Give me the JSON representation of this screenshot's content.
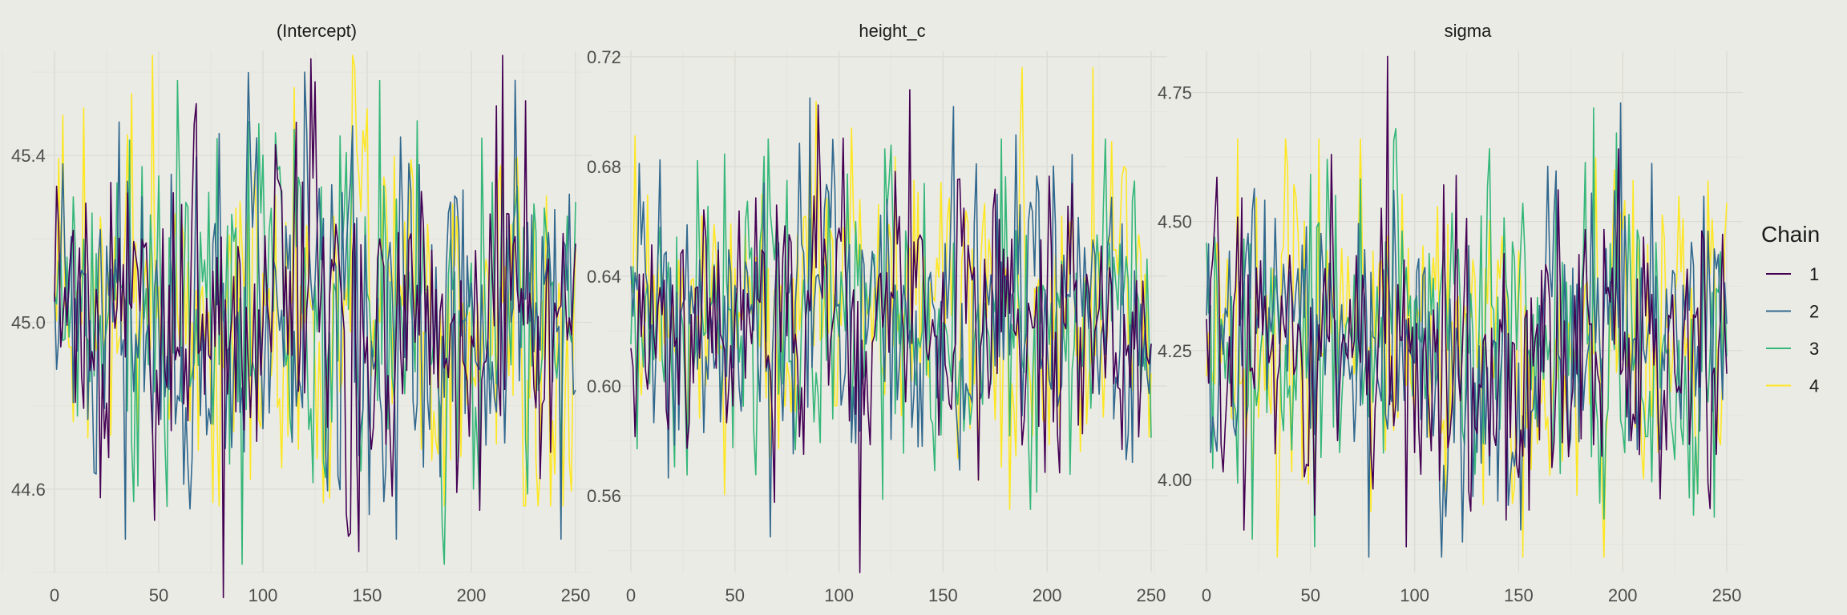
{
  "chart_data": {
    "type": "line",
    "legend": {
      "title": "Chain",
      "placement": "right",
      "entries": [
        {
          "label": "1",
          "color": "#440154"
        },
        {
          "label": "2",
          "color": "#31688e"
        },
        {
          "label": "3",
          "color": "#35b779"
        },
        {
          "label": "4",
          "color": "#fde725"
        }
      ]
    },
    "grid": true,
    "iterations": 250,
    "panels": [
      {
        "title": "(Intercept)",
        "xlim": [
          0,
          250
        ],
        "ylim": [
          44.4,
          45.65
        ],
        "xticks": [
          "0",
          "50",
          "100",
          "150",
          "200",
          "250"
        ],
        "yticks": [
          "44.6",
          "45.0",
          "45.4"
        ],
        "center": 45.02,
        "spread": 0.21,
        "series": [
          {
            "name": "1",
            "min": 44.34,
            "max": 45.64
          },
          {
            "name": "2",
            "min": 44.48,
            "max": 45.6
          },
          {
            "name": "3",
            "min": 44.42,
            "max": 45.58
          },
          {
            "name": "4",
            "min": 44.56,
            "max": 45.64
          }
        ]
      },
      {
        "title": "height_c",
        "xlim": [
          0,
          250
        ],
        "ylim": [
          0.532,
          0.722
        ],
        "xticks": [
          "0",
          "50",
          "100",
          "150",
          "200",
          "250"
        ],
        "yticks": [
          "0.56",
          "0.60",
          "0.64",
          "0.68",
          "0.72"
        ],
        "center": 0.625,
        "spread": 0.027,
        "series": [
          {
            "name": "1",
            "min": 0.532,
            "max": 0.708
          },
          {
            "name": "2",
            "min": 0.545,
            "max": 0.705
          },
          {
            "name": "3",
            "min": 0.555,
            "max": 0.69
          },
          {
            "name": "4",
            "min": 0.555,
            "max": 0.716
          }
        ]
      },
      {
        "title": "sigma",
        "xlim": [
          0,
          250
        ],
        "ylim": [
          3.82,
          4.83
        ],
        "xticks": [
          "0",
          "50",
          "100",
          "150",
          "200",
          "250"
        ],
        "yticks": [
          "4.00",
          "4.25",
          "4.50",
          "4.75"
        ],
        "center": 4.27,
        "spread": 0.15,
        "series": [
          {
            "name": "1",
            "min": 3.87,
            "max": 4.82
          },
          {
            "name": "2",
            "min": 3.85,
            "max": 4.73
          },
          {
            "name": "3",
            "min": 3.87,
            "max": 4.72
          },
          {
            "name": "4",
            "min": 3.85,
            "max": 4.66
          }
        ]
      }
    ]
  }
}
